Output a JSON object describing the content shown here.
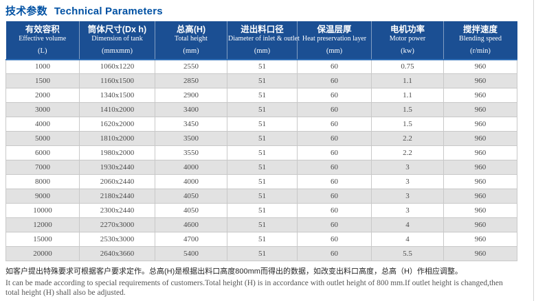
{
  "page": {
    "title_zh": "技术参数",
    "title_en": "Technical Parameters"
  },
  "table": {
    "columns": [
      {
        "zh": "有效容积",
        "en": "Effective volume",
        "unit": "(L)"
      },
      {
        "zh": "筒体尺寸(Dx h)",
        "en": "Dimension of tank",
        "unit": "(mmxmm)"
      },
      {
        "zh": "总高(H)",
        "en": "Total height",
        "unit": "(mm)"
      },
      {
        "zh": "进出料口径",
        "en": "Diameter of inlet & outlet",
        "unit": "(mm)"
      },
      {
        "zh": "保温层厚",
        "en": "Heat preservation layer",
        "unit": "(mm)"
      },
      {
        "zh": "电机功率",
        "en": "Motor power",
        "unit": "(kw)"
      },
      {
        "zh": "搅拌速度",
        "en": "Blending speed",
        "unit": "(r/min)"
      }
    ],
    "rows": [
      [
        "1000",
        "1060x1220",
        "2550",
        "51",
        "60",
        "0.75",
        "960"
      ],
      [
        "1500",
        "1160x1500",
        "2850",
        "51",
        "60",
        "1.1",
        "960"
      ],
      [
        "2000",
        "1340x1500",
        "2900",
        "51",
        "60",
        "1.1",
        "960"
      ],
      [
        "3000",
        "1410x2000",
        "3400",
        "51",
        "60",
        "1.5",
        "960"
      ],
      [
        "4000",
        "1620x2000",
        "3450",
        "51",
        "60",
        "1.5",
        "960"
      ],
      [
        "5000",
        "1810x2000",
        "3500",
        "51",
        "60",
        "2.2",
        "960"
      ],
      [
        "6000",
        "1980x2000",
        "3550",
        "51",
        "60",
        "2.2",
        "960"
      ],
      [
        "7000",
        "1930x2440",
        "4000",
        "51",
        "60",
        "3",
        "960"
      ],
      [
        "8000",
        "2060x2440",
        "4000",
        "51",
        "60",
        "3",
        "960"
      ],
      [
        "9000",
        "2180x2440",
        "4050",
        "51",
        "60",
        "3",
        "960"
      ],
      [
        "10000",
        "2300x2440",
        "4050",
        "51",
        "60",
        "3",
        "960"
      ],
      [
        "12000",
        "2270x3000",
        "4600",
        "51",
        "60",
        "4",
        "960"
      ],
      [
        "15000",
        "2530x3000",
        "4700",
        "51",
        "60",
        "4",
        "960"
      ],
      [
        "20000",
        "2640x3660",
        "5400",
        "51",
        "60",
        "5.5",
        "960"
      ]
    ]
  },
  "notes": {
    "zh": "如客户提出特殊要求可根据客户要求定作。总高(H)是根据出料口高度800mm而得出的数据，如改变出料口高度，总高（H）作相应调整。",
    "en_line1": "It can be made according to special requirements of customers.Total height (H) is in accordance with outlet height of 800 mm.If outlet height is changed,then",
    "en_line2": "total height (H) shall also be adjusted."
  },
  "colors": {
    "title_blue": "#0051a3",
    "header_bg": "#1b4f93",
    "header_bottom_border": "#2f6fb7",
    "row_alt_bg": "#e2e2e2",
    "cell_border": "#c8c8c8",
    "body_text": "#4a4a4a"
  }
}
